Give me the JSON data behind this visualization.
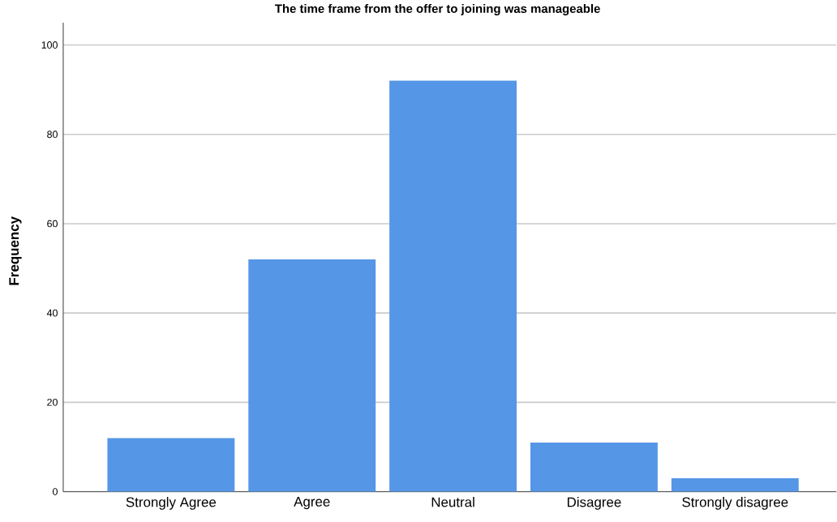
{
  "chart_data": {
    "type": "bar",
    "title": "The time frame from the offer to joining was manageable",
    "ylabel": "Frequency",
    "categories": [
      "Strongly Agree",
      "Agree",
      "Neutral",
      "Disagree",
      "Strongly disagree"
    ],
    "values": [
      12,
      52,
      92,
      11,
      3
    ],
    "color": "#5596e6",
    "ylim": [
      0,
      105
    ],
    "yticks": [
      0,
      20,
      40,
      60,
      80,
      100
    ],
    "grid": "y"
  }
}
